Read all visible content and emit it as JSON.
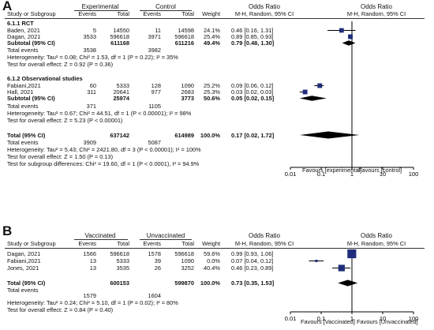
{
  "chart_data": [
    {
      "type": "forest",
      "panel_label": "A",
      "group_headers": [
        "Experimental",
        "Control"
      ],
      "columns": [
        "Study or Subgroup",
        "Events",
        "Total",
        "Events",
        "Total",
        "Weight",
        "Odds Ratio M-H, Random, 95% CI"
      ],
      "column_titles": {
        "study": "Study or Subgroup",
        "events": "Events",
        "total": "Total",
        "weight": "Weight",
        "or_title": "Odds Ratio",
        "or_subtitle": "M-H, Random, 95% CI"
      },
      "plot_header": {
        "title": "Odds Ratio",
        "subtitle": "M-H, Random, 95% CI"
      },
      "subgroups": [
        {
          "name": "6.1.1 RCT",
          "studies": [
            {
              "name": "Baden, 2021",
              "e_events": "5",
              "e_total": "14550",
              "c_events": "11",
              "c_total": "14598",
              "weight": "24.1%",
              "ci_text": "0.46 [0.16, 1.31]",
              "or": 0.46,
              "lo": 0.16,
              "hi": 1.31
            },
            {
              "name": "Dagan, 2021",
              "e_events": "3533",
              "e_total": "596618",
              "c_events": "3971",
              "c_total": "596618",
              "weight": "25.4%",
              "ci_text": "0.89 [0.85, 0.93]",
              "or": 0.89,
              "lo": 0.85,
              "hi": 0.93
            }
          ],
          "subtotal": {
            "label": "Subtotal (95% CI)",
            "e_total": "611168",
            "c_total": "611216",
            "weight": "49.4%",
            "ci_text": "0.79 [0.48, 1.30]",
            "or": 0.79,
            "lo": 0.48,
            "hi": 1.3
          },
          "total_events": {
            "label": "Total events",
            "e": "3538",
            "c": "3982"
          },
          "heterogeneity": "Heterogeneity: Tau² = 0.08; Chi² = 1.53, df = 1 (P = 0.22); I² = 35%",
          "overall_test": "Test for overall effect: Z = 0.92 (P = 0.36)"
        },
        {
          "name": "6.1.2 Observational studies",
          "studies": [
            {
              "name": "Fabiani,2021",
              "e_events": "60",
              "e_total": "5333",
              "c_events": "128",
              "c_total": "1090",
              "weight": "25.2%",
              "ci_text": "0.09 [0.06, 0.12]",
              "or": 0.09,
              "lo": 0.06,
              "hi": 0.12
            },
            {
              "name": "Hall, 2021",
              "e_events": "311",
              "e_total": "20641",
              "c_events": "977",
              "c_total": "2683",
              "weight": "25.3%",
              "ci_text": "0.03 [0.02, 0.03]",
              "or": 0.03,
              "lo": 0.02,
              "hi": 0.03
            }
          ],
          "subtotal": {
            "label": "Subtotal (95% CI)",
            "e_total": "25974",
            "c_total": "3773",
            "weight": "50.6%",
            "ci_text": "0.05 [0.02, 0.15]",
            "or": 0.05,
            "lo": 0.02,
            "hi": 0.15
          },
          "total_events": {
            "label": "Total events",
            "e": "371",
            "c": "1105"
          },
          "heterogeneity": "Heterogeneity: Tau² = 0.67; Chi² = 44.51, df = 1 (P < 0.00001); I² = 98%",
          "overall_test": "Test for overall effect: Z = 5.23 (P < 0.00001)"
        }
      ],
      "total": {
        "label": "Total (95% CI)",
        "e_total": "637142",
        "c_total": "614989",
        "weight": "100.0%",
        "ci_text": "0.17 [0.02, 1.72]",
        "or": 0.17,
        "lo": 0.02,
        "hi": 1.72
      },
      "total_events": {
        "label": "Total events",
        "e": "3909",
        "c": "5087"
      },
      "heterogeneity": "Heterogeneity: Tau² = 5.43; Chi² = 2421.80, df = 3 (P < 0.00001); I² = 100%",
      "overall_test": "Test for overall effect: Z = 1.50 (P = 0.13)",
      "subgroup_test": "Test for subgroup differences: Chi² = 19.60, df = 1 (P < 0.0001), I² = 94.9%",
      "x_scale": "log",
      "xlim": [
        0.01,
        100
      ],
      "x_ticks": [
        {
          "value": 0.01,
          "label": "0.01"
        },
        {
          "value": 0.1,
          "label": "0.1"
        },
        {
          "value": 1,
          "label": "1"
        },
        {
          "value": 10,
          "label": "10"
        },
        {
          "value": 100,
          "label": "100"
        }
      ],
      "favours_left": "Favours [experimental]",
      "favours_right": "Favours [control]",
      "marker_color": "#1f2d7a"
    },
    {
      "type": "forest",
      "panel_label": "B",
      "group_headers": [
        "Vaccinated",
        "Unvaccinated"
      ],
      "columns": [
        "Study or Subgroup",
        "Events",
        "Total",
        "Events",
        "Total",
        "Weight",
        "Odds Ratio M-H, Random, 95% CI"
      ],
      "column_titles": {
        "study": "Study or Subgroup",
        "events": "Events",
        "total": "Total",
        "weight": "Weight",
        "or_title": "Odds Ratio",
        "or_subtitle": "M-H, Random, 95% CI"
      },
      "plot_header": {
        "title": "Odds Ratio",
        "subtitle": "M-H, Random, 95% CI"
      },
      "studies": [
        {
          "name": "Dagan, 2021",
          "e_events": "1566",
          "e_total": "596618",
          "c_events": "1578",
          "c_total": "596618",
          "weight": "59.6%",
          "ci_text": "0.99 [0.93, 1.06]",
          "or": 0.99,
          "lo": 0.93,
          "hi": 1.06
        },
        {
          "name": "Fabiani,2021",
          "e_events": "13",
          "e_total": "5333",
          "c_events": "39",
          "c_total": "1090",
          "weight": "0.0%",
          "ci_text": "0.07 [0.04, 0.12]",
          "or": 0.07,
          "lo": 0.04,
          "hi": 0.12
        },
        {
          "name": "Jones, 2021",
          "e_events": "13",
          "e_total": "3535",
          "c_events": "26",
          "c_total": "3252",
          "weight": "40.4%",
          "ci_text": "0.46 [0.23, 0.89]",
          "or": 0.46,
          "lo": 0.23,
          "hi": 0.89
        }
      ],
      "total": {
        "label": "Total (95% CI)",
        "e_total": "600153",
        "c_total": "599870",
        "weight": "100.0%",
        "ci_text": "0.73 [0.35, 1.53]",
        "or": 0.73,
        "lo": 0.35,
        "hi": 1.53
      },
      "total_events": {
        "label": "Total events",
        "e": "1579",
        "c": "1604"
      },
      "heterogeneity": "Heterogeneity: Tau² = 0.24; Chi² = 5.10, df = 1 (P = 0.02); I² = 80%",
      "overall_test": "Test for overall effect: Z = 0.84 (P = 0.40)",
      "x_scale": "log",
      "xlim": [
        0.01,
        100
      ],
      "x_ticks": [
        {
          "value": 0.01,
          "label": "0.01"
        },
        {
          "value": 0.1,
          "label": "0.1"
        },
        {
          "value": 1,
          "label": "1"
        },
        {
          "value": 10,
          "label": "10"
        },
        {
          "value": 100,
          "label": "100"
        }
      ],
      "favours_left": "Favours [Vaccinated]",
      "favours_right": "Favours [Unvaccinated]",
      "marker_color": "#1f2d7a"
    }
  ]
}
